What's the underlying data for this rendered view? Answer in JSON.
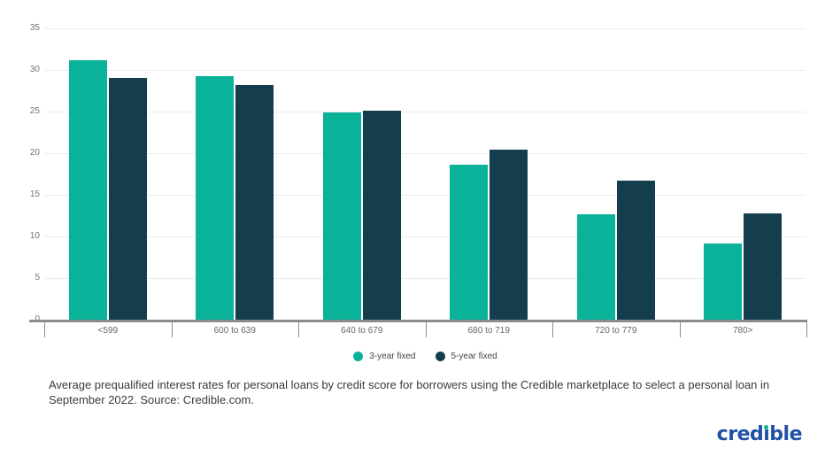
{
  "chart_data": {
    "type": "bar",
    "title": "",
    "xlabel": "",
    "ylabel": "",
    "categories": [
      "<599",
      "600 to 639",
      "640 to 679",
      "680 to 719",
      "720 to 779",
      "780>"
    ],
    "series": [
      {
        "name": "3-year fixed",
        "color": "#0ab29a",
        "values": [
          31.2,
          29.3,
          24.9,
          18.6,
          12.7,
          9.2
        ]
      },
      {
        "name": "5-year fixed",
        "color": "#143e4e",
        "values": [
          29.0,
          28.2,
          25.1,
          20.4,
          16.7,
          12.8
        ]
      }
    ],
    "ylim": [
      0,
      35
    ],
    "yticks": [
      0,
      5,
      10,
      15,
      20,
      25,
      30,
      35
    ],
    "grid": "horizontal-light",
    "legend_position": "bottom-center"
  },
  "caption": {
    "text": "Average prequalified interest rates for personal loans by credit score for borrowers using the Credible marketplace to select a personal loan in September 2022. Source: Credible.com."
  },
  "logo": {
    "text": "credible",
    "display": {
      "pre": "cred",
      "i_dotless": "ı",
      "post": "ble"
    },
    "color": "#2151a7",
    "i_dot_color": "#0ab29a"
  },
  "colors": {
    "bar_3yr": "#0ab29a",
    "bar_5yr": "#143e4e",
    "axis": "#8c8c8c",
    "gridline": "#ececec",
    "y_label": "#757575",
    "x_label": "#666666"
  }
}
